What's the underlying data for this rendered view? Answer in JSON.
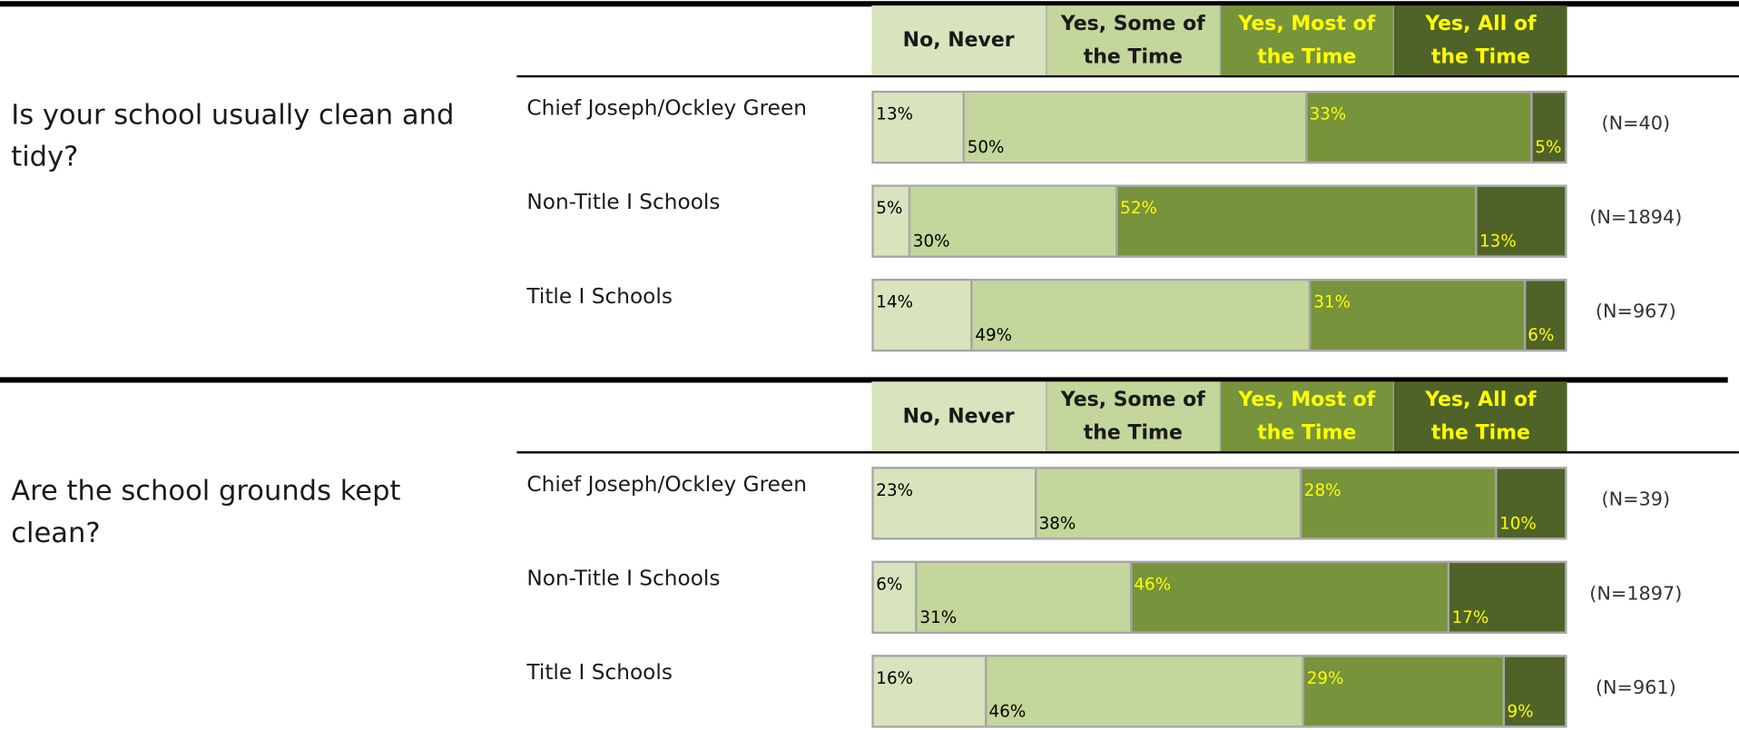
{
  "chart_data": [
    {
      "type": "bar",
      "orientation": "horizontal",
      "stacked": true,
      "title": "Is your school usually clean and tidy?",
      "categories": [
        "Chief Joseph/Ockley Green",
        "Non-Title I Schools",
        "Title I Schools"
      ],
      "annotations": [
        "(N=40)",
        "(N=1894)",
        "(N=967)"
      ],
      "series": [
        {
          "name": "No, Never",
          "color": "#d7e4bd",
          "label_color": "#000000",
          "values": [
            13,
            5,
            14
          ],
          "value_labels": [
            "13%",
            "5%",
            "14%"
          ]
        },
        {
          "name": "Yes, Some of the Time",
          "color": "#c3d69b",
          "label_color": "#000000",
          "values": [
            50,
            30,
            49
          ],
          "value_labels": [
            "50%",
            "30%",
            "49%"
          ]
        },
        {
          "name": "Yes, Most of the Time",
          "color": "#77933c",
          "label_color": "#ffff00",
          "values": [
            33,
            52,
            31
          ],
          "value_labels": [
            "33%",
            "52%",
            "31%"
          ]
        },
        {
          "name": "Yes, All of the Time",
          "color": "#4f6228",
          "label_color": "#ffff00",
          "values": [
            5,
            13,
            6
          ],
          "value_labels": [
            "5%",
            "13%",
            "6%"
          ]
        }
      ]
    },
    {
      "type": "bar",
      "orientation": "horizontal",
      "stacked": true,
      "title": "Are the school grounds kept clean?",
      "categories": [
        "Chief Joseph/Ockley Green",
        "Non-Title I Schools",
        "Title I Schools"
      ],
      "annotations": [
        "(N=39)",
        "(N=1897)",
        "(N=961)"
      ],
      "series": [
        {
          "name": "No, Never",
          "color": "#d7e4bd",
          "label_color": "#000000",
          "values": [
            23,
            6,
            16
          ],
          "value_labels": [
            "23%",
            "6%",
            "16%"
          ]
        },
        {
          "name": "Yes, Some of the Time",
          "color": "#c3d69b",
          "label_color": "#000000",
          "values": [
            38,
            31,
            46
          ],
          "value_labels": [
            "38%",
            "31%",
            "46%"
          ]
        },
        {
          "name": "Yes, Most of the Time",
          "color": "#77933c",
          "label_color": "#ffff00",
          "values": [
            28,
            46,
            29
          ],
          "value_labels": [
            "28%",
            "46%",
            "29%"
          ]
        },
        {
          "name": "Yes, All of the Time",
          "color": "#4f6228",
          "label_color": "#ffff00",
          "values": [
            10,
            17,
            9
          ],
          "value_labels": [
            "10%",
            "17%",
            "9%"
          ]
        }
      ]
    }
  ]
}
